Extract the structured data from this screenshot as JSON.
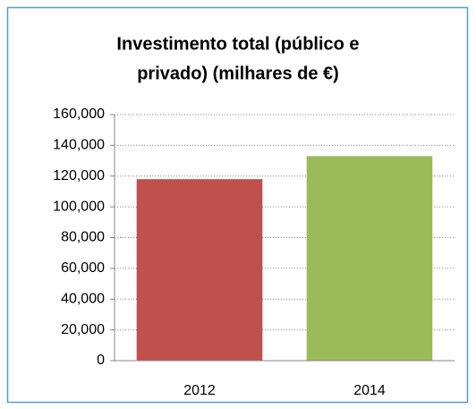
{
  "chart_data": {
    "type": "bar",
    "title": [
      "Investimento total (público e",
      "privado) (milhares de €)"
    ],
    "categories": [
      "2012",
      "2014"
    ],
    "values": [
      118000,
      133000
    ],
    "colors": [
      "#c0504d",
      "#9bbb59"
    ],
    "ylim": [
      0,
      160000
    ],
    "yticks": [
      0,
      {
        "value": 20000,
        "label": "20,000"
      },
      {
        "value": 40000,
        "label": "40,000"
      },
      {
        "value": 60000,
        "label": "60,000"
      },
      {
        "value": 80000,
        "label": "80,000"
      },
      {
        "value": 100000,
        "label": "100,000"
      },
      {
        "value": 120000,
        "label": "120,000"
      },
      {
        "value": 140000,
        "label": "140,000"
      },
      {
        "value": 160000,
        "label": "160,000"
      }
    ],
    "grid": true
  }
}
